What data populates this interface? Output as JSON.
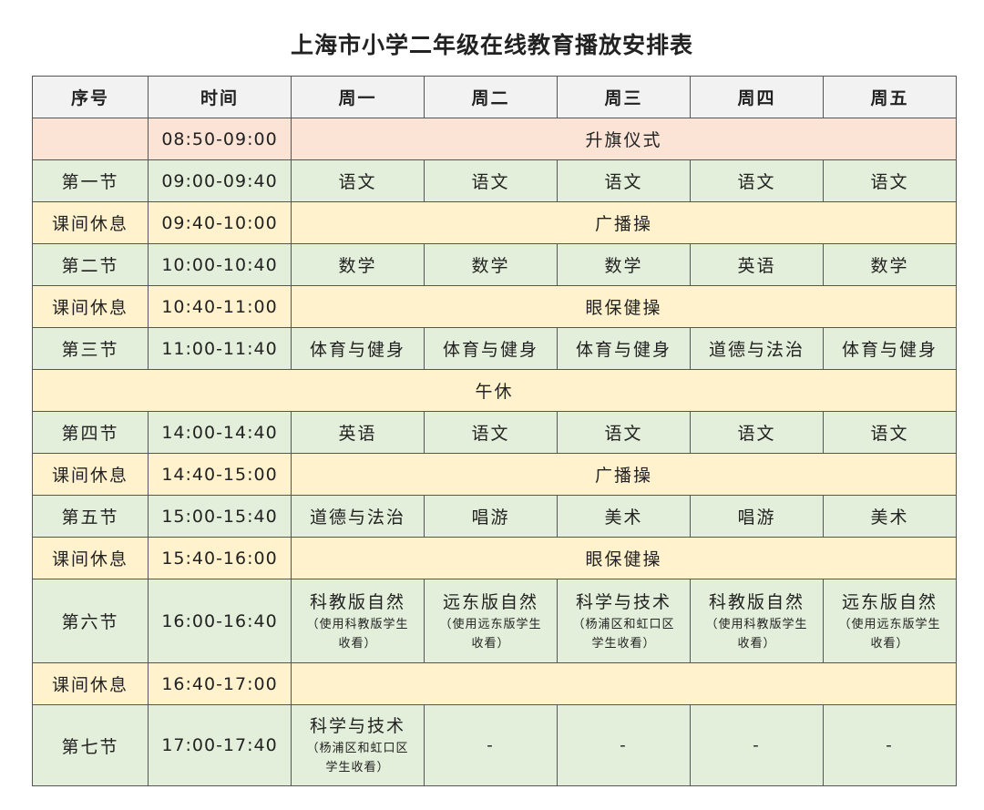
{
  "title": "上海市小学二年级在线教育播放安排表",
  "headers": [
    "序号",
    "时间",
    "周一",
    "周二",
    "周三",
    "周四",
    "周五"
  ],
  "colors": {
    "header": "#f2f2f2",
    "ceremony": "#fbe4d6",
    "lesson": "#e3efda",
    "break": "#fff2cc"
  },
  "rows": [
    {
      "type": "ceremony",
      "seq": "",
      "time": "08:50-09:00",
      "span": "升旗仪式"
    },
    {
      "type": "lesson",
      "seq": "第一节",
      "time": "09:00-09:40",
      "cells": [
        "语文",
        "语文",
        "语文",
        "语文",
        "语文"
      ]
    },
    {
      "type": "break",
      "seq": "课间休息",
      "time": "09:40-10:00",
      "span": "广播操"
    },
    {
      "type": "lesson",
      "seq": "第二节",
      "time": "10:00-10:40",
      "cells": [
        "数学",
        "数学",
        "数学",
        "英语",
        "数学"
      ]
    },
    {
      "type": "break",
      "seq": "课间休息",
      "time": "10:40-11:00",
      "span": "眼保健操"
    },
    {
      "type": "lesson",
      "seq": "第三节",
      "time": "11:00-11:40",
      "cells": [
        "体育与健身",
        "体育与健身",
        "体育与健身",
        "道德与法治",
        "体育与健身"
      ]
    },
    {
      "type": "break",
      "full": "午休"
    },
    {
      "type": "lesson",
      "seq": "第四节",
      "time": "14:00-14:40",
      "cells": [
        "英语",
        "语文",
        "语文",
        "语文",
        "语文"
      ]
    },
    {
      "type": "break",
      "seq": "课间休息",
      "time": "14:40-15:00",
      "span": "广播操"
    },
    {
      "type": "lesson",
      "seq": "第五节",
      "time": "15:00-15:40",
      "cells": [
        "道德与法治",
        "唱游",
        "美术",
        "唱游",
        "美术"
      ]
    },
    {
      "type": "break",
      "seq": "课间休息",
      "time": "15:40-16:00",
      "span": "眼保健操"
    },
    {
      "type": "lesson",
      "tall": "tall",
      "seq": "第六节",
      "time": "16:00-16:40",
      "cells": [
        {
          "main": "科教版自然",
          "note": "（使用科教版学生收看）"
        },
        {
          "main": "远东版自然",
          "note": "（使用远东版学生收看）"
        },
        {
          "main": "科学与技术",
          "note": "（杨浦区和虹口区学生收看）"
        },
        {
          "main": "科教版自然",
          "note": "（使用科教版学生收看）"
        },
        {
          "main": "远东版自然",
          "note": "（使用远东版学生收看）"
        }
      ]
    },
    {
      "type": "break",
      "seq": "课间休息",
      "time": "16:40-17:00",
      "span": ""
    },
    {
      "type": "lesson",
      "tall": "tall2",
      "seq": "第七节",
      "time": "17:00-17:40",
      "cells": [
        {
          "main": "科学与技术",
          "note": "（杨浦区和虹口区学生收看）"
        },
        "-",
        "-",
        "-",
        "-"
      ]
    }
  ]
}
